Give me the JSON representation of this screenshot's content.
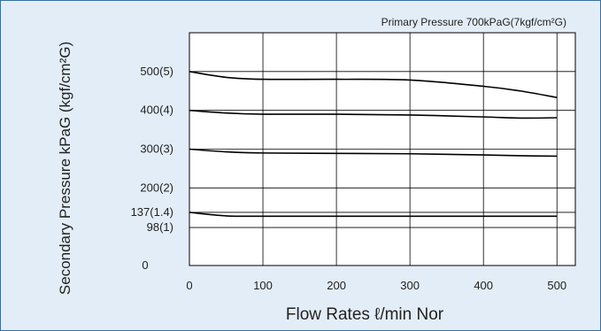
{
  "colors": {
    "background": "#e3edf7",
    "frame": "#3a6fa0",
    "plot_background": "#ffffff",
    "grid": "#000000",
    "curve": "#000000"
  },
  "chart_data": {
    "type": "line",
    "title": "Primary Pressure 700kPaG(7kgf/cm²G)",
    "xlabel": "Flow Rates ℓ/min Nor",
    "ylabel": "Secondary Pressure kPaG (kgf/cm²G)",
    "xlim": [
      0,
      525
    ],
    "ylim": [
      0,
      600
    ],
    "x_ticks": [
      0,
      100,
      200,
      300,
      400,
      500
    ],
    "x_tick_labels": [
      "0",
      "100",
      "200",
      "300",
      "400",
      "500"
    ],
    "y_ticks": [
      0,
      98,
      137,
      200,
      300,
      400,
      500
    ],
    "y_tick_labels": [
      "0",
      "98(1)",
      "137(1.4)",
      "200(2)",
      "300(3)",
      "400(4)",
      "500(5)"
    ],
    "grid_x": [
      100,
      200,
      300,
      400,
      500
    ],
    "grid_y": [
      98,
      137,
      200,
      300,
      400,
      500
    ],
    "grid": true,
    "series": [
      {
        "x": [
          0,
          50,
          100,
          200,
          300,
          400,
          450,
          500
        ],
        "values": [
          500,
          485,
          480,
          480,
          478,
          462,
          450,
          433
        ]
      },
      {
        "x": [
          0,
          50,
          100,
          200,
          300,
          400,
          450,
          500
        ],
        "values": [
          400,
          393,
          390,
          390,
          388,
          383,
          380,
          381
        ]
      },
      {
        "x": [
          0,
          50,
          100,
          200,
          300,
          400,
          450,
          500
        ],
        "values": [
          300,
          293,
          290,
          289,
          288,
          285,
          283,
          282
        ]
      },
      {
        "x": [
          0,
          50,
          100,
          200,
          300,
          400,
          450,
          500
        ],
        "values": [
          137,
          128,
          127,
          127,
          127,
          127,
          127,
          127
        ]
      }
    ]
  }
}
